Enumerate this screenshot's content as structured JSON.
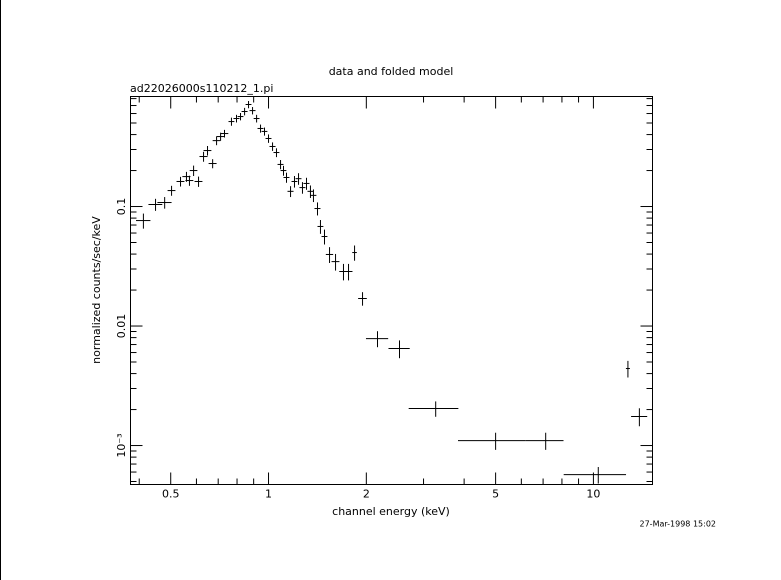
{
  "chart_data": {
    "type": "scatter",
    "title": "data and folded model",
    "subtitle": "ad22026000s110212_1.pi",
    "x_label": "channel energy (keV)",
    "y_label": "normalized counts/sec/keV",
    "footer": "27-Mar-1998 15:02",
    "log_x": true,
    "log_y": true,
    "color": "#000000",
    "xlim": [
      0.376,
      15.2
    ],
    "ylim": [
      0.000472,
      0.833
    ],
    "xticks": [
      0.5,
      1,
      2,
      5,
      10
    ],
    "xminorticks": [
      0.4,
      0.6,
      0.7,
      0.8,
      0.9,
      3,
      4,
      6,
      7,
      8,
      9
    ],
    "yticks": [
      0.1,
      0.01,
      {
        "value": 0.001,
        "label": "10⁻³"
      }
    ],
    "yminorticks": [
      0.0005,
      0.0006,
      0.0007,
      0.0008,
      0.0009,
      0.002,
      0.003,
      0.004,
      0.005,
      0.006,
      0.007,
      0.008,
      0.009,
      0.02,
      0.03,
      0.04,
      0.05,
      0.06,
      0.07,
      0.08,
      0.09,
      0.2,
      0.3,
      0.4,
      0.5,
      0.6,
      0.7,
      0.8
    ],
    "x": [
      0.412,
      0.449,
      0.479,
      0.503,
      0.536,
      0.559,
      0.571,
      0.588,
      0.609,
      0.631,
      0.649,
      0.673,
      0.692,
      0.712,
      0.732,
      0.769,
      0.797,
      0.82,
      0.844,
      0.868,
      0.893,
      0.919,
      0.945,
      0.972,
      1.0,
      1.029,
      1.058,
      1.089,
      1.112,
      1.136,
      1.169,
      1.202,
      1.237,
      1.272,
      1.309,
      1.346,
      1.375,
      1.415,
      1.445,
      1.487,
      1.541,
      1.608,
      1.701,
      1.763,
      1.84,
      1.947,
      2.165,
      2.53,
      3.27,
      5.0,
      7.13,
      10.35,
      12.77,
      13.85
    ],
    "xerr": [
      0.021,
      0.022,
      0.024,
      0.014,
      0.015,
      0.016,
      0.016,
      0.016,
      0.017,
      0.018,
      0.018,
      0.019,
      0.019,
      0.02,
      0.02,
      0.016,
      0.017,
      0.017,
      0.018,
      0.018,
      0.019,
      0.019,
      0.02,
      0.02,
      0.021,
      0.022,
      0.022,
      0.023,
      0.023,
      0.024,
      0.025,
      0.025,
      0.026,
      0.027,
      0.028,
      0.028,
      0.029,
      0.03,
      0.03,
      0.031,
      0.04,
      0.045,
      0.05,
      0.05,
      0.03,
      0.06,
      0.17,
      0.19,
      0.57,
      1.17,
      0.96,
      2.25,
      0.18,
      0.79
    ],
    "values": [
      0.0763,
      0.104,
      0.108,
      0.136,
      0.162,
      0.178,
      0.165,
      0.2,
      0.162,
      0.262,
      0.294,
      0.229,
      0.356,
      0.385,
      0.408,
      0.514,
      0.545,
      0.566,
      0.624,
      0.714,
      0.635,
      0.545,
      0.45,
      0.425,
      0.371,
      0.318,
      0.283,
      0.225,
      0.2,
      0.175,
      0.134,
      0.162,
      0.171,
      0.144,
      0.156,
      0.134,
      0.124,
      0.0962,
      0.0681,
      0.0561,
      0.0397,
      0.0346,
      0.0286,
      0.0286,
      0.0412,
      0.017,
      0.00785,
      0.00648,
      0.00204,
      0.0011,
      0.0011,
      0.000571,
      0.00441,
      0.00175
    ],
    "yerr": [
      0.011,
      0.012,
      0.012,
      0.013,
      0.015,
      0.017,
      0.016,
      0.02,
      0.016,
      0.025,
      0.027,
      0.02,
      0.03,
      0.03,
      0.03,
      0.04,
      0.04,
      0.04,
      0.045,
      0.05,
      0.045,
      0.04,
      0.035,
      0.033,
      0.03,
      0.026,
      0.024,
      0.02,
      0.019,
      0.017,
      0.014,
      0.018,
      0.019,
      0.016,
      0.018,
      0.016,
      0.015,
      0.012,
      0.009,
      0.008,
      0.006,
      0.0055,
      0.0045,
      0.0045,
      0.006,
      0.0022,
      0.0012,
      0.0011,
      0.0003,
      0.00018,
      0.00018,
      9e-05,
      0.0007,
      0.0003
    ]
  }
}
